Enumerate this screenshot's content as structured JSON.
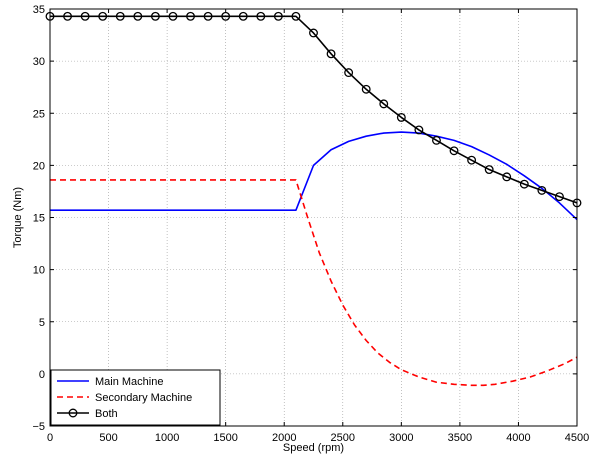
{
  "chart_data": {
    "type": "line",
    "xlabel": "Speed (rpm)",
    "ylabel": "Torque (Nm)",
    "xlim": [
      0,
      4500
    ],
    "ylim": [
      -5,
      35
    ],
    "xticks": [
      0,
      500,
      1000,
      1500,
      2000,
      2500,
      3000,
      3500,
      4000,
      4500
    ],
    "yticks": [
      -5,
      0,
      5,
      10,
      15,
      20,
      25,
      30,
      35
    ],
    "grid": true,
    "legend_position": "bottom-left",
    "series": [
      {
        "name": "Main Machine",
        "color": "#0000ff",
        "style": "solid",
        "marker": "none",
        "x": [
          0,
          500,
          1000,
          1500,
          2000,
          2100,
          2250,
          2400,
          2550,
          2700,
          2850,
          3000,
          3150,
          3300,
          3450,
          3600,
          3750,
          3900,
          4050,
          4200,
          4350,
          4500
        ],
        "y": [
          15.7,
          15.7,
          15.7,
          15.7,
          15.7,
          15.7,
          20.0,
          21.5,
          22.3,
          22.8,
          23.1,
          23.2,
          23.1,
          22.8,
          22.4,
          21.8,
          21.0,
          20.1,
          19.0,
          17.8,
          16.4,
          14.8
        ]
      },
      {
        "name": "Secondary Machine",
        "color": "#ff0000",
        "style": "dashed",
        "marker": "none",
        "x": [
          0,
          500,
          1000,
          1500,
          2000,
          2100,
          2200,
          2300,
          2400,
          2500,
          2600,
          2700,
          2800,
          2900,
          3000,
          3150,
          3300,
          3450,
          3600,
          3700,
          3800,
          3950,
          4100,
          4250,
          4400,
          4500
        ],
        "y": [
          18.6,
          18.6,
          18.6,
          18.6,
          18.6,
          18.6,
          15.0,
          11.6,
          8.9,
          6.6,
          4.7,
          3.2,
          2.0,
          1.1,
          0.4,
          -0.3,
          -0.8,
          -1.0,
          -1.1,
          -1.1,
          -1.0,
          -0.7,
          -0.3,
          0.3,
          1.0,
          1.6
        ]
      },
      {
        "name": "Both",
        "color": "#000000",
        "style": "solid",
        "marker": "circle",
        "x": [
          0,
          150,
          300,
          450,
          600,
          750,
          900,
          1050,
          1200,
          1350,
          1500,
          1650,
          1800,
          1950,
          2100,
          2250,
          2400,
          2550,
          2700,
          2850,
          3000,
          3150,
          3300,
          3450,
          3600,
          3750,
          3900,
          4050,
          4200,
          4350,
          4500
        ],
        "y": [
          34.3,
          34.3,
          34.3,
          34.3,
          34.3,
          34.3,
          34.3,
          34.3,
          34.3,
          34.3,
          34.3,
          34.3,
          34.3,
          34.3,
          34.3,
          32.7,
          30.7,
          28.9,
          27.3,
          25.9,
          24.6,
          23.4,
          22.4,
          21.4,
          20.5,
          19.6,
          18.9,
          18.2,
          17.6,
          17.0,
          16.4
        ]
      }
    ]
  }
}
